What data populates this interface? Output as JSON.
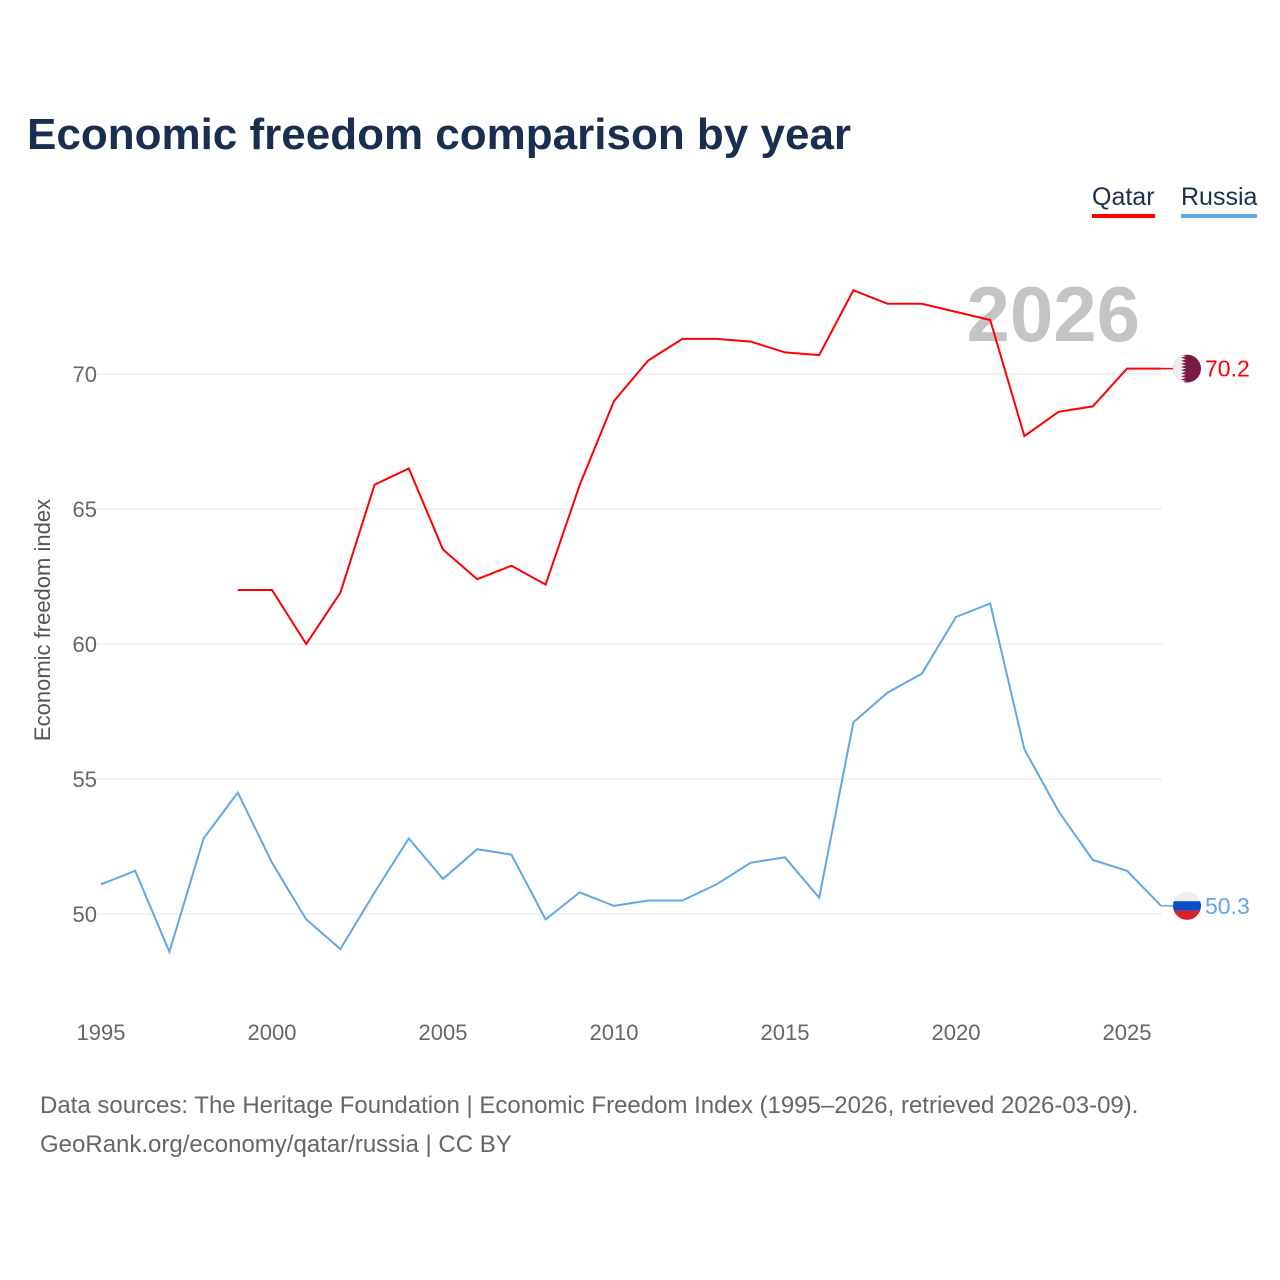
{
  "title": "Economic freedom comparison by year",
  "year_watermark": "2026",
  "source_line1": "Data sources: The Heritage Foundation | Economic Freedom Index (1995–2026, retrieved 2026-03-09).",
  "source_line2": "GeoRank.org/economy/qatar/russia | CC BY",
  "chart_data": {
    "type": "line",
    "title": "Economic freedom comparison by year",
    "xlabel": "",
    "ylabel": "Economic freedom index",
    "xlim": [
      1995,
      2026
    ],
    "ylim": [
      46.5,
      75
    ],
    "xticks": [
      1995,
      2000,
      2005,
      2010,
      2015,
      2020,
      2025
    ],
    "yticks": [
      50,
      55,
      60,
      65,
      70
    ],
    "grid": true,
    "legend": "top-right",
    "series": [
      {
        "name": "Qatar",
        "color": "#ff0000",
        "end_label": "70.2",
        "flag": "qatar-flag",
        "x": [
          1999,
          2000,
          2001,
          2002,
          2003,
          2004,
          2005,
          2006,
          2007,
          2008,
          2009,
          2010,
          2011,
          2012,
          2013,
          2014,
          2015,
          2016,
          2017,
          2018,
          2019,
          2020,
          2021,
          2022,
          2023,
          2024,
          2025,
          2026
        ],
        "values": [
          62.0,
          62.0,
          60.0,
          61.9,
          65.9,
          66.5,
          63.5,
          62.4,
          62.9,
          62.2,
          65.9,
          69.0,
          70.5,
          71.3,
          71.3,
          71.2,
          70.8,
          70.7,
          73.1,
          72.6,
          72.6,
          72.3,
          72.0,
          67.7,
          68.6,
          68.8,
          70.2,
          70.2
        ]
      },
      {
        "name": "Russia",
        "color": "#5fa8e8",
        "end_label": "50.3",
        "flag": "russia-flag",
        "x": [
          1995,
          1996,
          1997,
          1998,
          1999,
          2000,
          2001,
          2002,
          2003,
          2004,
          2005,
          2006,
          2007,
          2008,
          2009,
          2010,
          2011,
          2012,
          2013,
          2014,
          2015,
          2016,
          2017,
          2018,
          2019,
          2020,
          2021,
          2022,
          2023,
          2024,
          2025,
          2026
        ],
        "values": [
          51.1,
          51.6,
          48.6,
          52.8,
          54.5,
          51.9,
          49.8,
          48.7,
          50.8,
          52.8,
          51.3,
          52.4,
          52.2,
          49.8,
          50.8,
          50.3,
          50.5,
          50.5,
          51.1,
          51.9,
          52.1,
          50.6,
          57.1,
          58.2,
          58.9,
          61.0,
          61.5,
          56.1,
          53.8,
          52.0,
          51.6,
          50.3
        ]
      }
    ]
  }
}
